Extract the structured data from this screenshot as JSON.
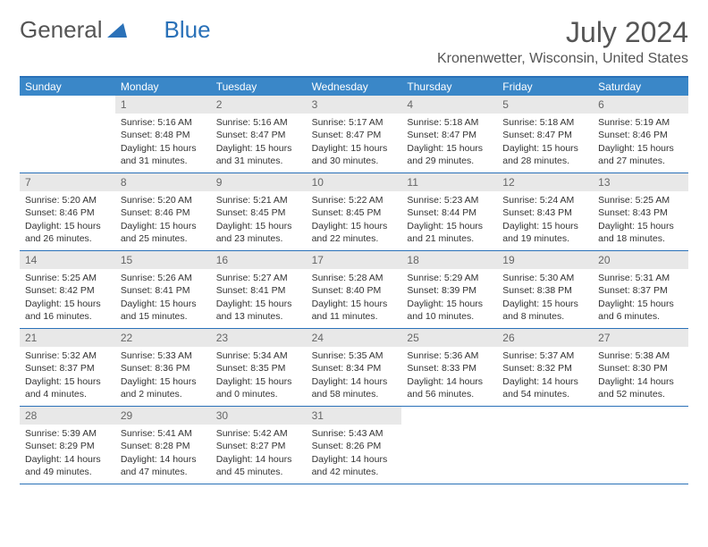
{
  "logo": {
    "text1": "General",
    "text2": "Blue"
  },
  "title": "July 2024",
  "location": "Kronenwetter, Wisconsin, United States",
  "day_names": [
    "Sunday",
    "Monday",
    "Tuesday",
    "Wednesday",
    "Thursday",
    "Friday",
    "Saturday"
  ],
  "colors": {
    "header_bg": "#3a87c8",
    "border": "#2a71b8",
    "daynum_bg": "#e8e8e8",
    "text": "#333333"
  },
  "start_offset": 1,
  "days": [
    {
      "n": 1,
      "sr": "5:16 AM",
      "ss": "8:48 PM",
      "dl": "15 hours and 31 minutes."
    },
    {
      "n": 2,
      "sr": "5:16 AM",
      "ss": "8:47 PM",
      "dl": "15 hours and 31 minutes."
    },
    {
      "n": 3,
      "sr": "5:17 AM",
      "ss": "8:47 PM",
      "dl": "15 hours and 30 minutes."
    },
    {
      "n": 4,
      "sr": "5:18 AM",
      "ss": "8:47 PM",
      "dl": "15 hours and 29 minutes."
    },
    {
      "n": 5,
      "sr": "5:18 AM",
      "ss": "8:47 PM",
      "dl": "15 hours and 28 minutes."
    },
    {
      "n": 6,
      "sr": "5:19 AM",
      "ss": "8:46 PM",
      "dl": "15 hours and 27 minutes."
    },
    {
      "n": 7,
      "sr": "5:20 AM",
      "ss": "8:46 PM",
      "dl": "15 hours and 26 minutes."
    },
    {
      "n": 8,
      "sr": "5:20 AM",
      "ss": "8:46 PM",
      "dl": "15 hours and 25 minutes."
    },
    {
      "n": 9,
      "sr": "5:21 AM",
      "ss": "8:45 PM",
      "dl": "15 hours and 23 minutes."
    },
    {
      "n": 10,
      "sr": "5:22 AM",
      "ss": "8:45 PM",
      "dl": "15 hours and 22 minutes."
    },
    {
      "n": 11,
      "sr": "5:23 AM",
      "ss": "8:44 PM",
      "dl": "15 hours and 21 minutes."
    },
    {
      "n": 12,
      "sr": "5:24 AM",
      "ss": "8:43 PM",
      "dl": "15 hours and 19 minutes."
    },
    {
      "n": 13,
      "sr": "5:25 AM",
      "ss": "8:43 PM",
      "dl": "15 hours and 18 minutes."
    },
    {
      "n": 14,
      "sr": "5:25 AM",
      "ss": "8:42 PM",
      "dl": "15 hours and 16 minutes."
    },
    {
      "n": 15,
      "sr": "5:26 AM",
      "ss": "8:41 PM",
      "dl": "15 hours and 15 minutes."
    },
    {
      "n": 16,
      "sr": "5:27 AM",
      "ss": "8:41 PM",
      "dl": "15 hours and 13 minutes."
    },
    {
      "n": 17,
      "sr": "5:28 AM",
      "ss": "8:40 PM",
      "dl": "15 hours and 11 minutes."
    },
    {
      "n": 18,
      "sr": "5:29 AM",
      "ss": "8:39 PM",
      "dl": "15 hours and 10 minutes."
    },
    {
      "n": 19,
      "sr": "5:30 AM",
      "ss": "8:38 PM",
      "dl": "15 hours and 8 minutes."
    },
    {
      "n": 20,
      "sr": "5:31 AM",
      "ss": "8:37 PM",
      "dl": "15 hours and 6 minutes."
    },
    {
      "n": 21,
      "sr": "5:32 AM",
      "ss": "8:37 PM",
      "dl": "15 hours and 4 minutes."
    },
    {
      "n": 22,
      "sr": "5:33 AM",
      "ss": "8:36 PM",
      "dl": "15 hours and 2 minutes."
    },
    {
      "n": 23,
      "sr": "5:34 AM",
      "ss": "8:35 PM",
      "dl": "15 hours and 0 minutes."
    },
    {
      "n": 24,
      "sr": "5:35 AM",
      "ss": "8:34 PM",
      "dl": "14 hours and 58 minutes."
    },
    {
      "n": 25,
      "sr": "5:36 AM",
      "ss": "8:33 PM",
      "dl": "14 hours and 56 minutes."
    },
    {
      "n": 26,
      "sr": "5:37 AM",
      "ss": "8:32 PM",
      "dl": "14 hours and 54 minutes."
    },
    {
      "n": 27,
      "sr": "5:38 AM",
      "ss": "8:30 PM",
      "dl": "14 hours and 52 minutes."
    },
    {
      "n": 28,
      "sr": "5:39 AM",
      "ss": "8:29 PM",
      "dl": "14 hours and 49 minutes."
    },
    {
      "n": 29,
      "sr": "5:41 AM",
      "ss": "8:28 PM",
      "dl": "14 hours and 47 minutes."
    },
    {
      "n": 30,
      "sr": "5:42 AM",
      "ss": "8:27 PM",
      "dl": "14 hours and 45 minutes."
    },
    {
      "n": 31,
      "sr": "5:43 AM",
      "ss": "8:26 PM",
      "dl": "14 hours and 42 minutes."
    }
  ],
  "labels": {
    "sunrise": "Sunrise:",
    "sunset": "Sunset:",
    "daylight": "Daylight:"
  }
}
